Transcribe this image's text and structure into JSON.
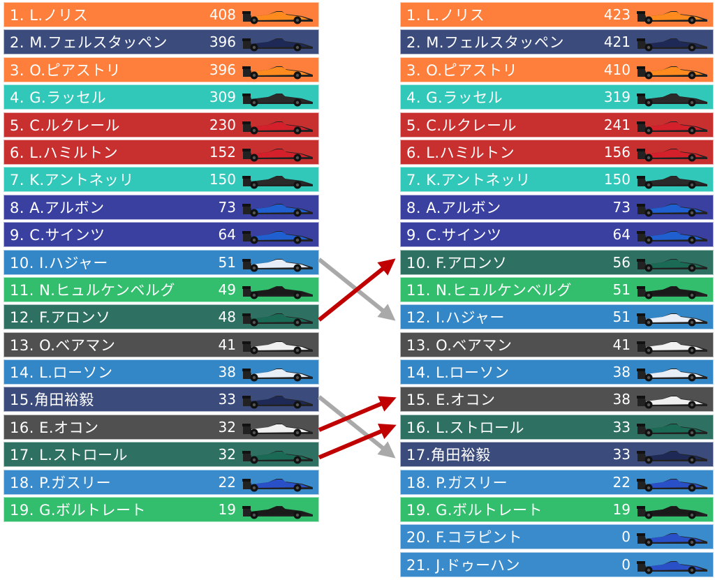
{
  "team_colors": {
    "mclaren": "#FD7F3B",
    "redbull": "#3B4C7C",
    "mercedes": "#31C8B9",
    "ferrari": "#C82F2F",
    "williams": "#3A40A0",
    "racingbulls": "#3487C7",
    "sauber": "#32BE6C",
    "astonmartin": "#2E7062",
    "haas": "#505050",
    "alpine": "#3A8BCB"
  },
  "left_standings": [
    {
      "label": "1. L.ノリス",
      "points": "408",
      "team": "mclaren"
    },
    {
      "label": "2. M.フェルスタッペン",
      "points": "396",
      "team": "redbull"
    },
    {
      "label": "3. O.ピアストリ",
      "points": "396",
      "team": "mclaren"
    },
    {
      "label": "4. G.ラッセル",
      "points": "309",
      "team": "mercedes"
    },
    {
      "label": "5. C.ルクレール",
      "points": "230",
      "team": "ferrari"
    },
    {
      "label": "6. L.ハミルトン",
      "points": "152",
      "team": "ferrari"
    },
    {
      "label": "7. K.アントネッリ",
      "points": "150",
      "team": "mercedes"
    },
    {
      "label": "8. A.アルボン",
      "points": "73",
      "team": "williams"
    },
    {
      "label": "9. C.サインツ",
      "points": "64",
      "team": "williams"
    },
    {
      "label": "10. I.ハジャー",
      "points": "51",
      "team": "racingbulls"
    },
    {
      "label": "11. N.ヒュルケンベルグ",
      "points": "49",
      "team": "sauber"
    },
    {
      "label": "12. F.アロンソ",
      "points": "48",
      "team": "astonmartin"
    },
    {
      "label": "13. O.ベアマン",
      "points": "41",
      "team": "haas"
    },
    {
      "label": "14. L.ローソン",
      "points": "38",
      "team": "racingbulls"
    },
    {
      "label": "15.角田裕毅",
      "points": "33",
      "team": "redbull"
    },
    {
      "label": "16. E.オコン",
      "points": "32",
      "team": "haas"
    },
    {
      "label": "17. L.ストロール",
      "points": "32",
      "team": "astonmartin"
    },
    {
      "label": "18. P.ガスリー",
      "points": "22",
      "team": "alpine"
    },
    {
      "label": "19. G.ボルトレート",
      "points": "19",
      "team": "sauber"
    }
  ],
  "right_standings": [
    {
      "label": "1. L.ノリス",
      "points": "423",
      "team": "mclaren"
    },
    {
      "label": "2. M.フェルスタッペン",
      "points": "421",
      "team": "redbull"
    },
    {
      "label": "3. O.ピアストリ",
      "points": "410",
      "team": "mclaren"
    },
    {
      "label": "4. G.ラッセル",
      "points": "319",
      "team": "mercedes"
    },
    {
      "label": "5. C.ルクレール",
      "points": "241",
      "team": "ferrari"
    },
    {
      "label": "6. L.ハミルトン",
      "points": "156",
      "team": "ferrari"
    },
    {
      "label": "7. K.アントネッリ",
      "points": "150",
      "team": "mercedes"
    },
    {
      "label": "8. A.アルボン",
      "points": "73",
      "team": "williams"
    },
    {
      "label": "9. C.サインツ",
      "points": "64",
      "team": "williams"
    },
    {
      "label": "10. F.アロンソ",
      "points": "56",
      "team": "astonmartin"
    },
    {
      "label": "11. N.ヒュルケンベルグ",
      "points": "51",
      "team": "sauber"
    },
    {
      "label": "12. I.ハジャー",
      "points": "51",
      "team": "racingbulls"
    },
    {
      "label": "13. O.ベアマン",
      "points": "41",
      "team": "haas"
    },
    {
      "label": "14. L.ローソン",
      "points": "38",
      "team": "racingbulls"
    },
    {
      "label": "15. E.オコン",
      "points": "38",
      "team": "haas"
    },
    {
      "label": "16. L.ストロール",
      "points": "33",
      "team": "astonmartin"
    },
    {
      "label": "17.角田裕毅",
      "points": "33",
      "team": "redbull"
    },
    {
      "label": "18. P.ガスリー",
      "points": "22",
      "team": "alpine"
    },
    {
      "label": "19. G.ボルトレート",
      "points": "19",
      "team": "sauber"
    },
    {
      "label": "20. F.コラピント",
      "points": "0",
      "team": "alpine"
    },
    {
      "label": "21. J.ドゥーハン",
      "points": "0",
      "team": "alpine"
    }
  ],
  "movements": [
    {
      "from": 10,
      "to": 12,
      "direction": "down",
      "color": "#A9A9A9"
    },
    {
      "from": 12,
      "to": 10,
      "direction": "up",
      "color": "#C00000"
    },
    {
      "from": 15,
      "to": 17,
      "direction": "down",
      "color": "#A9A9A9"
    },
    {
      "from": 16,
      "to": 15,
      "direction": "up",
      "color": "#C00000"
    },
    {
      "from": 17,
      "to": 16,
      "direction": "up",
      "color": "#C00000"
    }
  ]
}
